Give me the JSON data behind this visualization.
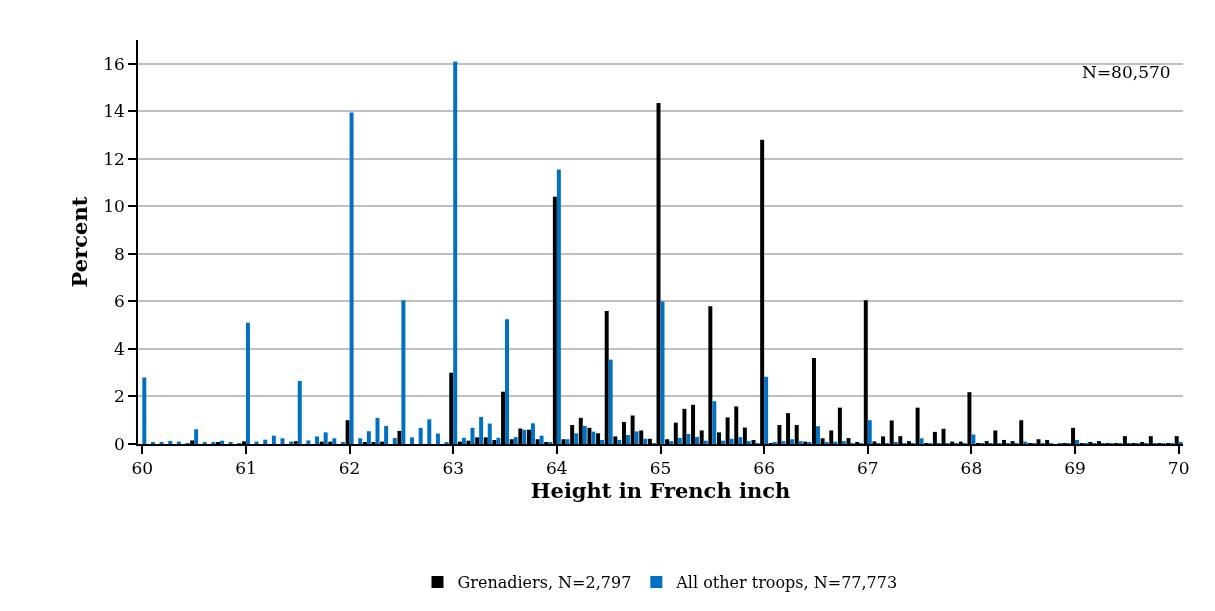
{
  "chart_data": {
    "type": "bar",
    "xlabel": "Height in French inch",
    "ylabel": "Percent",
    "annotations": [
      "N=80,570"
    ],
    "categories": [
      "60",
      null,
      null,
      null,
      null,
      null,
      null,
      null,
      null,
      null,
      null,
      null,
      "61",
      null,
      null,
      null,
      null,
      null,
      null,
      null,
      null,
      null,
      null,
      null,
      "62",
      null,
      null,
      null,
      null,
      null,
      null,
      null,
      null,
      null,
      null,
      null,
      "63",
      null,
      null,
      null,
      null,
      null,
      null,
      null,
      null,
      null,
      null,
      null,
      "64",
      null,
      null,
      null,
      null,
      null,
      null,
      null,
      null,
      null,
      null,
      null,
      "65",
      null,
      null,
      null,
      null,
      null,
      null,
      null,
      null,
      null,
      null,
      null,
      "66",
      null,
      null,
      null,
      null,
      null,
      null,
      null,
      null,
      null,
      null,
      null,
      "67",
      null,
      null,
      null,
      null,
      null,
      null,
      null,
      null,
      null,
      null,
      null,
      "68",
      null,
      null,
      null,
      null,
      null,
      null,
      null,
      null,
      null,
      null,
      null,
      "69",
      null,
      null,
      null,
      null,
      null,
      null,
      null,
      null,
      null,
      null,
      null,
      "70"
    ],
    "series": [
      {
        "name": "Grenadiers, N=2,797",
        "color": "#000000",
        "values": [
          0,
          0,
          0,
          0,
          0,
          0,
          0.15,
          0,
          0,
          0.08,
          0,
          0,
          0.11,
          0,
          0,
          0,
          0,
          0,
          0.12,
          0,
          0,
          0.1,
          0.1,
          0,
          1.0,
          0,
          0.05,
          0.07,
          0.1,
          0,
          0.55,
          0,
          0,
          0,
          0,
          0,
          3.0,
          0.1,
          0.14,
          0.28,
          0.28,
          0.17,
          2.2,
          0.2,
          0.65,
          0.6,
          0.2,
          0.05,
          10.4,
          0.2,
          0.8,
          1.1,
          0.68,
          0.45,
          5.6,
          0.32,
          0.93,
          1.2,
          0.57,
          0.22,
          14.35,
          0.2,
          0.9,
          1.48,
          1.65,
          0.57,
          5.8,
          0.49,
          1.12,
          1.58,
          0.69,
          0.17,
          12.8,
          0.04,
          0.8,
          1.3,
          0.8,
          0.1,
          3.62,
          0.24,
          0.57,
          1.53,
          0.25,
          0.05,
          6.05,
          0.11,
          0.32,
          0.99,
          0.33,
          0.12,
          1.53,
          0.04,
          0.51,
          0.64,
          0.1,
          0.1,
          2.18,
          0.03,
          0.12,
          0.57,
          0.17,
          0.12,
          1.0,
          0.03,
          0.2,
          0.17,
          0,
          0.02,
          0.68,
          0.03,
          0.07,
          0.12,
          0.03,
          0.03,
          0.33,
          0.03,
          0.05,
          0.33,
          0.03,
          0.03,
          0.33
        ]
      },
      {
        "name": "All other troops, N=77,773",
        "color": "#0070c0",
        "values": [
          2.8,
          0.05,
          0.07,
          0.13,
          0.1,
          0.03,
          0.62,
          0.05,
          0.08,
          0.14,
          0.07,
          0.03,
          5.1,
          0.1,
          0.18,
          0.35,
          0.24,
          0.1,
          2.65,
          0.15,
          0.32,
          0.49,
          0.24,
          0.05,
          13.95,
          0.24,
          0.54,
          1.1,
          0.76,
          0.25,
          6.05,
          0.28,
          0.68,
          1.04,
          0.44,
          0.07,
          16.1,
          0.26,
          0.68,
          1.14,
          0.86,
          0.26,
          5.25,
          0.29,
          0.6,
          0.87,
          0.35,
          0.08,
          11.55,
          0.2,
          0.45,
          0.76,
          0.52,
          0.17,
          3.55,
          0.17,
          0.38,
          0.53,
          0.22,
          0.04,
          6.0,
          0.12,
          0.26,
          0.42,
          0.3,
          0.14,
          1.8,
          0.14,
          0.22,
          0.29,
          0.12,
          0.03,
          2.83,
          0.07,
          0.12,
          0.2,
          0.12,
          0.05,
          0.75,
          0.05,
          0.1,
          0.12,
          0.04,
          0.04,
          1.0,
          0.03,
          0.03,
          0.05,
          0.03,
          0.03,
          0.24,
          0.03,
          0.03,
          0.03,
          0.03,
          0.03,
          0.4,
          0.02,
          0.03,
          0.03,
          0.03,
          0.02,
          0.1,
          0.02,
          0.02,
          0.02,
          0.02,
          0.02,
          0.17,
          0.02,
          0.02,
          0.02,
          0.02,
          0.02,
          0.02,
          0.02,
          0.02,
          0.02,
          0.02,
          0.02,
          0.05
        ]
      }
    ],
    "ylim": [
      0,
      17
    ],
    "yticks": [
      0,
      2,
      4,
      6,
      8,
      10,
      12,
      14,
      16
    ],
    "grid": "y",
    "legend": "bottom"
  }
}
